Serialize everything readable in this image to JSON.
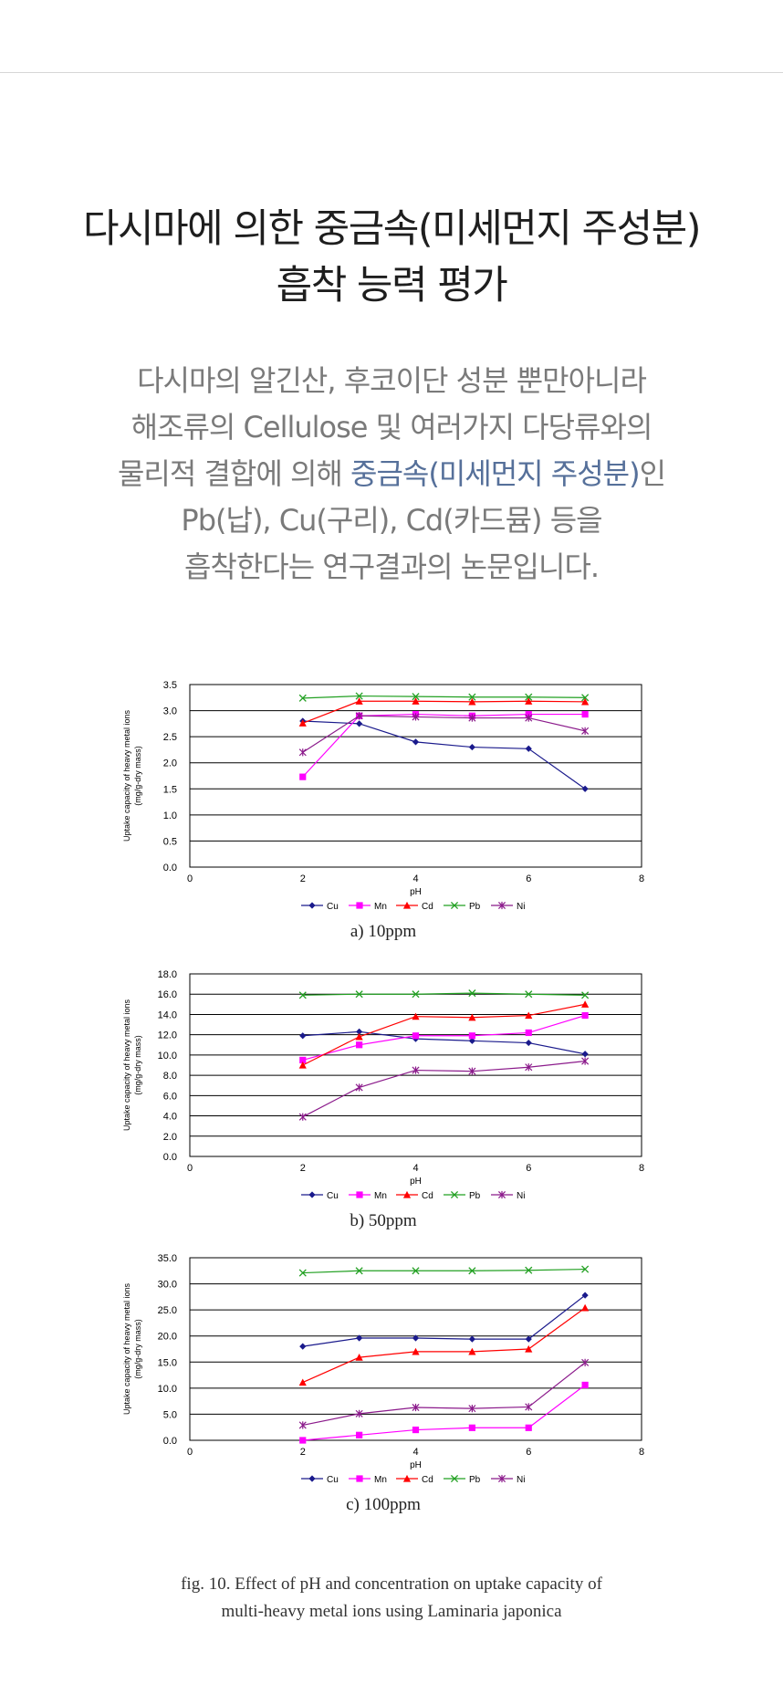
{
  "heading": {
    "line1": "다시마에 의한 중금속(미세먼지 주성분)",
    "line2": "흡착 능력 평가"
  },
  "description": {
    "line1": "다시마의 알긴산, 후코이단 성분 뿐만아니라",
    "line2": "해조류의 Cellulose 및 여러가지 다당류와의",
    "line3_pre": "물리적 결합에 의해 ",
    "line3_highlight": "중금속(미세먼지 주성분)",
    "line3_post": "인",
    "line4": "Pb(납), Cu(구리), Cd(카드뮴) 등을",
    "line5": "흡착한다는 연구결과의 논문입니다."
  },
  "figure_caption": {
    "line1": "fig. 10. Effect of  pH and concentration on uptake capacity of",
    "line2": "multi-heavy metal ions using Laminaria japonica"
  },
  "series_styles": [
    {
      "name": "Cu",
      "color": "#1a1a8c",
      "marker": "diamond"
    },
    {
      "name": "Mn",
      "color": "#ff00ff",
      "marker": "square"
    },
    {
      "name": "Cd",
      "color": "#ff0000",
      "marker": "triangle"
    },
    {
      "name": "Pb",
      "color": "#22a022",
      "marker": "x"
    },
    {
      "name": "Ni",
      "color": "#8b1a8b",
      "marker": "star"
    }
  ],
  "chart_data": [
    {
      "type": "line",
      "subtitle": "a) 10ppm",
      "xlabel": "pH",
      "ylabel_line1": "Uptake capacity of heavy metal ions",
      "ylabel_line2": "(mg/g-dry mass)",
      "xlim": [
        0,
        8
      ],
      "ylim": [
        0,
        3.5
      ],
      "xticks": [
        "0",
        "2",
        "4",
        "6",
        "8"
      ],
      "yticks": [
        "0.0",
        "0.5",
        "1.0",
        "1.5",
        "2.0",
        "2.5",
        "3.0",
        "3.5"
      ],
      "x": [
        2,
        3,
        4,
        5,
        6,
        7
      ],
      "series": [
        {
          "name": "Cu",
          "values": [
            2.8,
            2.75,
            2.4,
            2.3,
            2.27,
            1.5
          ]
        },
        {
          "name": "Mn",
          "values": [
            1.73,
            2.9,
            2.93,
            2.9,
            2.93,
            2.93
          ]
        },
        {
          "name": "Cd",
          "values": [
            2.76,
            3.18,
            3.18,
            3.17,
            3.18,
            3.17
          ]
        },
        {
          "name": "Pb",
          "values": [
            3.24,
            3.28,
            3.27,
            3.26,
            3.26,
            3.25
          ]
        },
        {
          "name": "Ni",
          "values": [
            2.2,
            2.9,
            2.88,
            2.86,
            2.86,
            2.61
          ]
        }
      ]
    },
    {
      "type": "line",
      "subtitle": "b) 50ppm",
      "xlabel": "pH",
      "ylabel_line1": "Uptake capacity of heavy metal ions",
      "ylabel_line2": "(mg/g-dry mass)",
      "xlim": [
        0,
        8
      ],
      "ylim": [
        0,
        18
      ],
      "xticks": [
        "0",
        "2",
        "4",
        "6",
        "8"
      ],
      "yticks": [
        "0.0",
        "2.0",
        "4.0",
        "6.0",
        "8.0",
        "10.0",
        "12.0",
        "14.0",
        "16.0",
        "18.0"
      ],
      "x": [
        2,
        3,
        4,
        5,
        6,
        7
      ],
      "series": [
        {
          "name": "Cu",
          "values": [
            11.9,
            12.3,
            11.6,
            11.4,
            11.2,
            10.1
          ]
        },
        {
          "name": "Mn",
          "values": [
            9.5,
            11.0,
            11.9,
            11.9,
            12.2,
            13.9
          ]
        },
        {
          "name": "Cd",
          "values": [
            9.0,
            11.8,
            13.8,
            13.7,
            13.9,
            15.0
          ]
        },
        {
          "name": "Pb",
          "values": [
            15.9,
            16.0,
            16.0,
            16.1,
            16.0,
            15.9
          ]
        },
        {
          "name": "Ni",
          "values": [
            3.9,
            6.8,
            8.5,
            8.4,
            8.8,
            9.4
          ]
        }
      ]
    },
    {
      "type": "line",
      "subtitle": "c) 100ppm",
      "xlabel": "pH",
      "ylabel_line1": "Uptake capacity of heavy metal ions",
      "ylabel_line2": "(mg/g-dry mass)",
      "xlim": [
        0,
        8
      ],
      "ylim": [
        0,
        35
      ],
      "xticks": [
        "0",
        "2",
        "4",
        "6",
        "8"
      ],
      "yticks": [
        "0.0",
        "5.0",
        "10.0",
        "15.0",
        "20.0",
        "25.0",
        "30.0",
        "35.0"
      ],
      "x": [
        2,
        3,
        4,
        5,
        6,
        7
      ],
      "series": [
        {
          "name": "Cu",
          "values": [
            18.0,
            19.6,
            19.6,
            19.4,
            19.4,
            27.8
          ]
        },
        {
          "name": "Mn",
          "values": [
            0.0,
            1.0,
            2.0,
            2.4,
            2.4,
            10.6
          ]
        },
        {
          "name": "Cd",
          "values": [
            11.1,
            15.9,
            17.0,
            17.0,
            17.5,
            25.4
          ]
        },
        {
          "name": "Pb",
          "values": [
            32.1,
            32.5,
            32.5,
            32.5,
            32.6,
            32.8
          ]
        },
        {
          "name": "Ni",
          "values": [
            2.9,
            5.1,
            6.3,
            6.1,
            6.4,
            14.9
          ]
        }
      ]
    }
  ]
}
